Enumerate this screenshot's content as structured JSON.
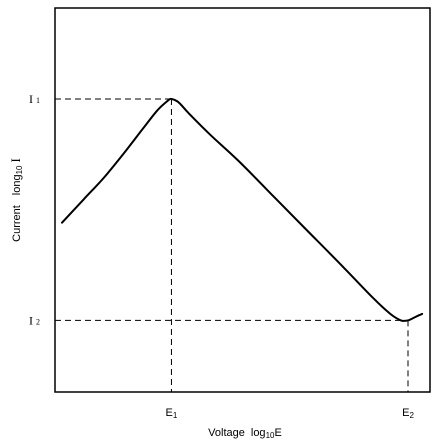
{
  "chart_data": {
    "type": "line",
    "title": "",
    "xlabel": {
      "text": "Voltage",
      "expr_prefix": "log",
      "expr_sub": "10",
      "expr_var": "E"
    },
    "ylabel": {
      "text": "Current",
      "expr_prefix": "long",
      "expr_sub": "10",
      "expr_var": "I"
    },
    "x_ticks": [
      {
        "base": "E",
        "sub": "1",
        "x": 0.31
      },
      {
        "base": "E",
        "sub": "2",
        "x": 0.98
      }
    ],
    "y_ticks": [
      {
        "base": "I",
        "sub": "1",
        "y": 0.9
      },
      {
        "base": "I",
        "sub": "2",
        "y": 0.22
      }
    ],
    "xlim": [
      0,
      1.04
    ],
    "ylim": [
      0,
      1.03
    ],
    "series": [
      {
        "name": "",
        "x": [
          0.0,
          0.06,
          0.12,
          0.18,
          0.23,
          0.27,
          0.3,
          0.31,
          0.33,
          0.36,
          0.42,
          0.5,
          0.6,
          0.7,
          0.8,
          0.88,
          0.93,
          0.96,
          0.98,
          1.0,
          1.02
        ],
        "y": [
          0.52,
          0.59,
          0.66,
          0.74,
          0.81,
          0.865,
          0.895,
          0.9,
          0.89,
          0.855,
          0.79,
          0.71,
          0.6,
          0.49,
          0.38,
          0.29,
          0.24,
          0.22,
          0.22,
          0.23,
          0.24
        ]
      }
    ],
    "grid": false,
    "legend": "none",
    "reference_lines": "dashed drop lines at (E1, I1) and (E2, I2)",
    "colors": {
      "line": "#000000",
      "axes": "#000000",
      "background": "#ffffff"
    }
  }
}
